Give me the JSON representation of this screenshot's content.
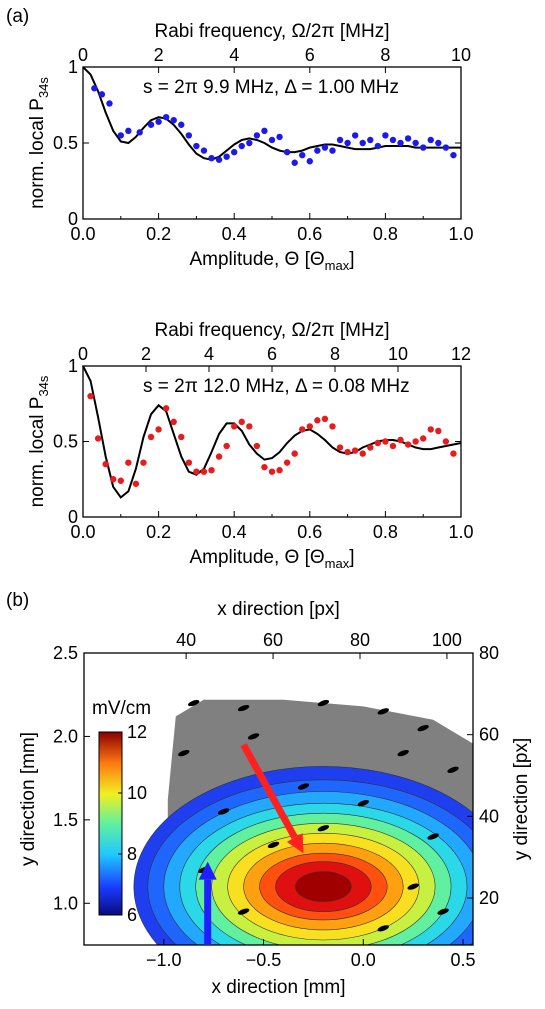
{
  "panels": {
    "a": "(a)",
    "b": "(b)"
  },
  "chart_data": [
    {
      "type": "scatter",
      "id": "rabi_top",
      "xlabel_bottom": "Amplitude, Θ [Θ",
      "xlabel_bottom_sub": "max",
      "xlabel_bottom_end": "]",
      "xlabel_top": "Rabi frequency, Ω/2π [MHz]",
      "ylabel": "norm. local P",
      "ylabel_sub": "34s",
      "annotation": "s = 2π 9.9 MHz, Δ = 1.00 MHz",
      "xlim": [
        0,
        1
      ],
      "ylim": [
        0,
        1
      ],
      "xticks": [
        0.0,
        0.2,
        0.4,
        0.6,
        0.8,
        1.0
      ],
      "xtick_labels": [
        "0.0",
        "0.2",
        "0.4",
        "0.6",
        "0.8",
        "1.0"
      ],
      "yticks": [
        0,
        0.5,
        1
      ],
      "ytick_labels": [
        "0",
        "0.5",
        "1"
      ],
      "top_xlim": [
        0,
        10
      ],
      "top_xticks": [
        0,
        2,
        4,
        6,
        8,
        10
      ],
      "top_xtick_labels": [
        "0",
        "2",
        "4",
        "6",
        "8",
        "10"
      ],
      "colors": {
        "points": "#1a1aee",
        "fit": "#000000"
      },
      "series": [
        {
          "kind": "points",
          "x": [
            0.03,
            0.05,
            0.07,
            0.1,
            0.12,
            0.15,
            0.18,
            0.2,
            0.22,
            0.24,
            0.26,
            0.28,
            0.3,
            0.32,
            0.34,
            0.36,
            0.38,
            0.4,
            0.42,
            0.44,
            0.46,
            0.48,
            0.5,
            0.52,
            0.54,
            0.56,
            0.58,
            0.6,
            0.62,
            0.64,
            0.66,
            0.68,
            0.7,
            0.72,
            0.74,
            0.76,
            0.78,
            0.8,
            0.82,
            0.84,
            0.86,
            0.88,
            0.9,
            0.92,
            0.94,
            0.96,
            0.98
          ],
          "y": [
            0.86,
            0.82,
            0.76,
            0.55,
            0.58,
            0.57,
            0.62,
            0.64,
            0.67,
            0.65,
            0.62,
            0.55,
            0.48,
            0.45,
            0.4,
            0.39,
            0.41,
            0.44,
            0.48,
            0.5,
            0.55,
            0.58,
            0.52,
            0.54,
            0.44,
            0.37,
            0.42,
            0.38,
            0.45,
            0.47,
            0.45,
            0.52,
            0.5,
            0.55,
            0.5,
            0.52,
            0.48,
            0.55,
            0.52,
            0.5,
            0.53,
            0.5,
            0.47,
            0.52,
            0.5,
            0.47,
            0.42
          ]
        },
        {
          "kind": "fit",
          "x": [
            0,
            0.02,
            0.04,
            0.06,
            0.08,
            0.1,
            0.12,
            0.14,
            0.16,
            0.18,
            0.2,
            0.22,
            0.24,
            0.26,
            0.28,
            0.3,
            0.32,
            0.34,
            0.36,
            0.38,
            0.4,
            0.42,
            0.44,
            0.46,
            0.48,
            0.5,
            0.52,
            0.54,
            0.56,
            0.58,
            0.6,
            0.62,
            0.64,
            0.66,
            0.68,
            0.7,
            0.72,
            0.74,
            0.76,
            0.78,
            0.8,
            0.82,
            0.84,
            0.86,
            0.88,
            0.9,
            0.92,
            0.94,
            0.96,
            0.98,
            1.0
          ],
          "y": [
            1.0,
            0.95,
            0.84,
            0.7,
            0.58,
            0.51,
            0.5,
            0.54,
            0.6,
            0.65,
            0.67,
            0.66,
            0.62,
            0.56,
            0.49,
            0.43,
            0.4,
            0.39,
            0.41,
            0.45,
            0.49,
            0.52,
            0.53,
            0.52,
            0.5,
            0.47,
            0.45,
            0.44,
            0.44,
            0.45,
            0.47,
            0.48,
            0.49,
            0.49,
            0.48,
            0.47,
            0.46,
            0.46,
            0.46,
            0.47,
            0.48,
            0.48,
            0.48,
            0.48,
            0.47,
            0.47,
            0.47,
            0.47,
            0.47,
            0.47,
            0.47
          ]
        }
      ]
    },
    {
      "type": "scatter",
      "id": "rabi_bottom",
      "xlabel_bottom": "Amplitude, Θ [Θ",
      "xlabel_bottom_sub": "max",
      "xlabel_bottom_end": "]",
      "xlabel_top": "Rabi frequency, Ω/2π [MHz]",
      "ylabel": "norm. local P",
      "ylabel_sub": "34s",
      "annotation": "s = 2π 12.0 MHz, Δ = 0.08 MHz",
      "xlim": [
        0,
        1
      ],
      "ylim": [
        0,
        1
      ],
      "xticks": [
        0.0,
        0.2,
        0.4,
        0.6,
        0.8,
        1.0
      ],
      "xtick_labels": [
        "0.0",
        "0.2",
        "0.4",
        "0.6",
        "0.8",
        "1.0"
      ],
      "yticks": [
        0,
        0.5,
        1
      ],
      "ytick_labels": [
        "0",
        "0.5",
        "1"
      ],
      "top_xlim": [
        0,
        12
      ],
      "top_xticks": [
        0,
        2,
        4,
        6,
        8,
        10,
        12
      ],
      "top_xtick_labels": [
        "0",
        "2",
        "4",
        "6",
        "8",
        "10",
        "12"
      ],
      "colors": {
        "points": "#e81c1c",
        "fit": "#000000"
      },
      "series": [
        {
          "kind": "points",
          "x": [
            0.02,
            0.04,
            0.06,
            0.08,
            0.1,
            0.12,
            0.14,
            0.16,
            0.18,
            0.2,
            0.22,
            0.24,
            0.26,
            0.28,
            0.3,
            0.32,
            0.34,
            0.36,
            0.38,
            0.4,
            0.42,
            0.44,
            0.46,
            0.48,
            0.5,
            0.52,
            0.54,
            0.56,
            0.58,
            0.6,
            0.62,
            0.64,
            0.66,
            0.68,
            0.7,
            0.72,
            0.74,
            0.76,
            0.78,
            0.8,
            0.82,
            0.84,
            0.86,
            0.88,
            0.9,
            0.92,
            0.94,
            0.96,
            0.98
          ],
          "y": [
            0.8,
            0.52,
            0.35,
            0.25,
            0.24,
            0.36,
            0.22,
            0.36,
            0.53,
            0.58,
            0.72,
            0.63,
            0.53,
            0.36,
            0.3,
            0.3,
            0.31,
            0.4,
            0.47,
            0.6,
            0.63,
            0.6,
            0.47,
            0.33,
            0.3,
            0.31,
            0.36,
            0.42,
            0.58,
            0.6,
            0.64,
            0.65,
            0.6,
            0.46,
            0.43,
            0.44,
            0.42,
            0.46,
            0.49,
            0.5,
            0.47,
            0.51,
            0.48,
            0.5,
            0.52,
            0.58,
            0.57,
            0.5,
            0.42
          ]
        },
        {
          "kind": "fit",
          "x": [
            0,
            0.02,
            0.04,
            0.06,
            0.08,
            0.1,
            0.12,
            0.14,
            0.16,
            0.18,
            0.2,
            0.22,
            0.24,
            0.26,
            0.28,
            0.3,
            0.32,
            0.34,
            0.36,
            0.38,
            0.4,
            0.42,
            0.44,
            0.46,
            0.48,
            0.5,
            0.52,
            0.54,
            0.56,
            0.58,
            0.6,
            0.62,
            0.64,
            0.66,
            0.68,
            0.7,
            0.72,
            0.74,
            0.76,
            0.78,
            0.8,
            0.82,
            0.84,
            0.86,
            0.88,
            0.9,
            0.92,
            0.94,
            0.96,
            0.98,
            1.0
          ],
          "y": [
            1.0,
            0.9,
            0.66,
            0.4,
            0.2,
            0.13,
            0.17,
            0.32,
            0.53,
            0.68,
            0.74,
            0.7,
            0.55,
            0.4,
            0.3,
            0.28,
            0.32,
            0.43,
            0.55,
            0.62,
            0.62,
            0.57,
            0.48,
            0.42,
            0.38,
            0.39,
            0.43,
            0.49,
            0.54,
            0.57,
            0.58,
            0.55,
            0.51,
            0.46,
            0.43,
            0.42,
            0.43,
            0.46,
            0.48,
            0.5,
            0.51,
            0.51,
            0.5,
            0.48,
            0.46,
            0.45,
            0.45,
            0.46,
            0.47,
            0.48,
            0.49
          ]
        }
      ]
    },
    {
      "type": "heatmap",
      "id": "field_map",
      "xlabel_bottom": "x direction [mm]",
      "xlabel_top": "x direction [px]",
      "ylabel_left": "y direction [mm]",
      "ylabel_right": "y direction [px]",
      "xlim": [
        -1.4,
        0.55
      ],
      "ylim": [
        0.75,
        2.5
      ],
      "xticks": [
        -1.0,
        -0.5,
        0.0,
        0.5
      ],
      "xtick_labels": [
        "−1.0",
        "−0.5",
        "0.0",
        "0.5"
      ],
      "yticks": [
        1.0,
        1.5,
        2.0,
        2.5
      ],
      "ytick_labels": [
        "1.0",
        "1.5",
        "2.0",
        "2.5"
      ],
      "top_xlim": [
        16.5,
        106
      ],
      "top_xticks": [
        40,
        60,
        80,
        100
      ],
      "top_xtick_labels": [
        "40",
        "60",
        "80",
        "100"
      ],
      "right_ylim": [
        8.5,
        80
      ],
      "right_yticks": [
        20,
        40,
        60,
        80
      ],
      "right_ytick_labels": [
        "20",
        "40",
        "60",
        "80"
      ],
      "colorbar": {
        "label": "mV/cm",
        "min": 6,
        "max": 12,
        "ticks": [
          6,
          8,
          10,
          12
        ],
        "tick_labels": [
          "6",
          "8",
          "10",
          "12"
        ]
      },
      "background_color": "#808080",
      "field_center": {
        "x": -0.2,
        "y": 1.1,
        "peak_mV_per_cm": 12
      },
      "arrows": [
        {
          "color": "#ff2020",
          "from": [
            -0.6,
            1.95
          ],
          "to": [
            -0.3,
            1.3
          ]
        },
        {
          "color": "#2020ff",
          "from": [
            -0.78,
            0.75
          ],
          "to": [
            -0.78,
            1.25
          ]
        }
      ]
    }
  ]
}
